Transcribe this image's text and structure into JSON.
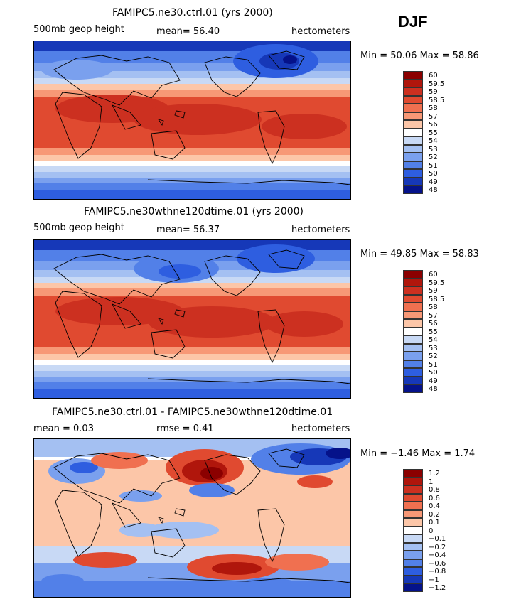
{
  "season": "DJF",
  "panels": [
    {
      "title": "FAMIPC5.ne30.ctrl.01 (yrs 2000)",
      "left_label": "500mb geop height",
      "mid_label": "mean=  56.40",
      "right_label": "hectometers",
      "minmax": "Min =  50.06 Max =  58.86",
      "legend_levels": [
        "60",
        "59.5",
        "59",
        "58.5",
        "58",
        "57",
        "56",
        "55",
        "54",
        "53",
        "52",
        "51",
        "50",
        "49",
        "48"
      ]
    },
    {
      "title": "FAMIPC5.ne30wthne120dtime.01 (yrs 2000)",
      "left_label": "500mb geop height",
      "mid_label": "mean=  56.37",
      "right_label": "hectometers",
      "minmax": "Min =  49.85 Max =  58.83",
      "legend_levels": [
        "60",
        "59.5",
        "59",
        "58.5",
        "58",
        "57",
        "56",
        "55",
        "54",
        "53",
        "52",
        "51",
        "50",
        "49",
        "48"
      ]
    },
    {
      "title": "FAMIPC5.ne30.ctrl.01 - FAMIPC5.ne30wthne120dtime.01",
      "left_label": "mean =   0.03",
      "mid_label": "rmse =   0.41",
      "right_label": "hectometers",
      "minmax": "Min =  −1.46 Max =   1.74",
      "legend_levels": [
        "1.2",
        "1",
        "0.8",
        "0.6",
        "0.4",
        "0.2",
        "0.1",
        "0",
        "−0.1",
        "−0.2",
        "−0.4",
        "−0.6",
        "−0.8",
        "−1",
        "−1.2"
      ]
    }
  ],
  "palette": [
    "#8b0000",
    "#b0160c",
    "#cc3020",
    "#e04a30",
    "#f07050",
    "#f79876",
    "#fcc6a8",
    "#ffffff",
    "#c8d9f5",
    "#a4c0f2",
    "#7aa0ee",
    "#5280e8",
    "#2e5ee0",
    "#1638b8",
    "#05128a"
  ],
  "chart_data": [
    {
      "type": "heatmap",
      "title": "FAMIPC5.ne30.ctrl.01 (yrs 2000)",
      "variable": "500mb geop height",
      "units": "hectometers",
      "mean": 56.4,
      "min": 50.06,
      "max": 58.86,
      "contour_levels": [
        48,
        49,
        50,
        51,
        52,
        53,
        54,
        55,
        56,
        57,
        58,
        58.5,
        59,
        59.5,
        60
      ]
    },
    {
      "type": "heatmap",
      "title": "FAMIPC5.ne30wthne120dtime.01 (yrs 2000)",
      "variable": "500mb geop height",
      "units": "hectometers",
      "mean": 56.37,
      "min": 49.85,
      "max": 58.83,
      "contour_levels": [
        48,
        49,
        50,
        51,
        52,
        53,
        54,
        55,
        56,
        57,
        58,
        58.5,
        59,
        59.5,
        60
      ]
    },
    {
      "type": "heatmap",
      "title": "FAMIPC5.ne30.ctrl.01 - FAMIPC5.ne30wthne120dtime.01",
      "units": "hectometers",
      "mean": 0.03,
      "rmse": 0.41,
      "min": -1.46,
      "max": 1.74,
      "contour_levels": [
        -1.2,
        -1,
        -0.8,
        -0.6,
        -0.4,
        -0.2,
        -0.1,
        0,
        0.1,
        0.2,
        0.4,
        0.6,
        0.8,
        1,
        1.2
      ]
    }
  ]
}
